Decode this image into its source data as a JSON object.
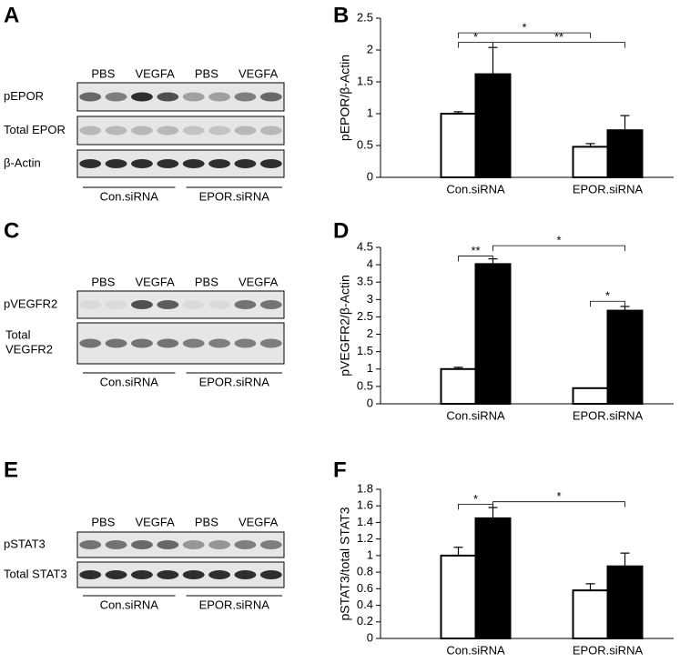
{
  "blots": [
    {
      "label": "A",
      "lanes": [
        "PBS",
        "VEGFA",
        "PBS",
        "VEGFA"
      ],
      "rows": [
        "pEPOR",
        "Total EPOR",
        "β-Actin"
      ],
      "groups": [
        "Con.siRNA",
        "EPOR.siRNA"
      ]
    },
    {
      "label": "C",
      "lanes": [
        "PBS",
        "VEGFA",
        "PBS",
        "VEGFA"
      ],
      "rows": [
        "pVEGFR2",
        "Total VEGFR2"
      ],
      "groups": [
        "Con.siRNA",
        "EPOR.siRNA"
      ]
    },
    {
      "label": "E",
      "lanes": [
        "PBS",
        "VEGFA",
        "PBS",
        "VEGFA"
      ],
      "rows": [
        "pSTAT3",
        "Total STAT3"
      ],
      "groups": [
        "Con.siRNA",
        "EPOR.siRNA"
      ]
    }
  ],
  "chart_data": [
    {
      "type": "bar",
      "label": "B",
      "ylabel": "pEPOR/β-Actin",
      "categories": [
        "Con.siRNA",
        "EPOR.siRNA"
      ],
      "series": [
        {
          "color": "#ffffff",
          "values": [
            1.0,
            0.48
          ],
          "errors": [
            0.03,
            0.05
          ]
        },
        {
          "color": "#000000",
          "values": [
            1.62,
            0.74
          ],
          "errors": [
            0.42,
            0.23
          ]
        }
      ],
      "ylim": [
        0,
        2.5
      ],
      "yticks": [
        0,
        0.5,
        1,
        1.5,
        2,
        2.5
      ],
      "annotations": [
        {
          "text": "*",
          "from": [
            0,
            0
          ],
          "to": [
            0,
            1
          ],
          "y": 2.12
        },
        {
          "text": "*",
          "from": [
            0,
            0
          ],
          "to": [
            1,
            0
          ],
          "y": 2.27
        },
        {
          "text": "**",
          "from": [
            0,
            1
          ],
          "to": [
            1,
            1
          ],
          "y": 2.12
        }
      ]
    },
    {
      "type": "bar",
      "label": "D",
      "ylabel": "pVEGFR2/β-Actin",
      "categories": [
        "Con.siRNA",
        "EPOR.siRNA"
      ],
      "series": [
        {
          "color": "#ffffff",
          "values": [
            1.0,
            0.45
          ],
          "errors": [
            0.05,
            0
          ]
        },
        {
          "color": "#000000",
          "values": [
            4.02,
            2.68
          ],
          "errors": [
            0.15,
            0.12
          ]
        }
      ],
      "ylim": [
        0,
        4.5
      ],
      "yticks": [
        0,
        0.5,
        1,
        1.5,
        2,
        2.5,
        3,
        3.5,
        4,
        4.5
      ],
      "annotations": [
        {
          "text": "**",
          "from": [
            0,
            0
          ],
          "to": [
            0,
            1
          ],
          "y": 4.25
        },
        {
          "text": "*",
          "from": [
            0,
            1
          ],
          "to": [
            1,
            1
          ],
          "y": 4.55
        },
        {
          "text": "*",
          "from": [
            1,
            0
          ],
          "to": [
            1,
            1
          ],
          "y": 2.95
        }
      ]
    },
    {
      "type": "bar",
      "label": "F",
      "ylabel": "pSTAT3/total STAT3",
      "categories": [
        "Con.siRNA",
        "EPOR.siRNA"
      ],
      "series": [
        {
          "color": "#ffffff",
          "values": [
            1.0,
            0.58
          ],
          "errors": [
            0.1,
            0.08
          ]
        },
        {
          "color": "#000000",
          "values": [
            1.45,
            0.87
          ],
          "errors": [
            0.13,
            0.16
          ]
        }
      ],
      "ylim": [
        0,
        1.8
      ],
      "yticks": [
        0,
        0.2,
        0.4,
        0.6,
        0.8,
        1,
        1.2,
        1.4,
        1.6,
        1.8
      ],
      "annotations": [
        {
          "text": "*",
          "from": [
            0,
            0
          ],
          "to": [
            0,
            1
          ],
          "y": 1.62
        },
        {
          "text": "*",
          "from": [
            0,
            1
          ],
          "to": [
            1,
            1
          ],
          "y": 1.65
        }
      ]
    }
  ]
}
